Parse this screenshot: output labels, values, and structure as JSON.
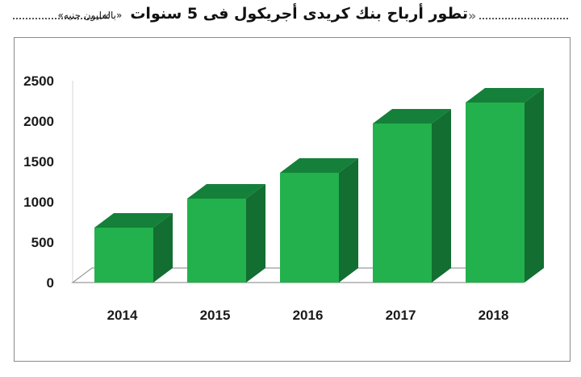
{
  "header": {
    "title": "تطور أرباح بنك كريدى أجريكول فى 5 سنوات",
    "unit_note": "«بالمليون جنيه»"
  },
  "chart_data": {
    "type": "bar",
    "title": "تطور أرباح بنك كريدى أجريكول فى 5 سنوات",
    "subtitle": "«بالمليون جنيه»",
    "categories": [
      "2014",
      "2015",
      "2016",
      "2017",
      "2018"
    ],
    "values": [
      680,
      1040,
      1360,
      1970,
      2230
    ],
    "ylim": [
      0,
      2500
    ],
    "yticks": [
      "0",
      "500",
      "1000",
      "1500",
      "2000",
      "2500"
    ],
    "grid": false,
    "colors": {
      "front": "#22b14c",
      "top": "#15803a",
      "side": "#126e31",
      "floor": "#9a9a9a"
    }
  }
}
